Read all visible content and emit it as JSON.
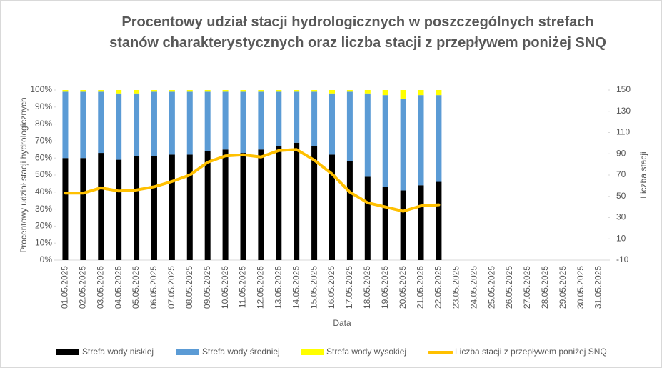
{
  "chart_data": {
    "type": "bar",
    "title": "Procentowy udział stacji hydrologicznych w poszczególnych strefach stanów charakterystycznych oraz liczba stacji z przepływem poniżej SNQ",
    "x_label": "Data",
    "y_label": "Procentowy udział stacji hydrologicznych",
    "y2_label": "Liczba stacji",
    "stacked": true,
    "legend": "bottom",
    "categories": [
      "01.05.2025",
      "02.05.2025",
      "03.05.2025",
      "04.05.2025",
      "05.05.2025",
      "06.05.2025",
      "07.05.2025",
      "08.05.2025",
      "09.05.2025",
      "10.05.2025",
      "11.05.2025",
      "12.05.2025",
      "13.05.2025",
      "14.05.2025",
      "15.05.2025",
      "16.05.2025",
      "17.05.2025",
      "18.05.2025",
      "19.05.2025",
      "20.05.2025",
      "21.05.2025",
      "22.05.2025",
      "23.05.2025",
      "24.05.2025",
      "25.05.2025",
      "26.05.2025",
      "27.05.2025",
      "28.05.2025",
      "29.05.2025",
      "30.05.2025",
      "31.05.2025"
    ],
    "series": [
      {
        "name": "Strefa wody niskiej",
        "type": "bar",
        "color": "#000000",
        "values": [
          60,
          60,
          63,
          59,
          61,
          61,
          62,
          62,
          64,
          65,
          63,
          65,
          67,
          69,
          67,
          62,
          58,
          49,
          43,
          41,
          44,
          46,
          null,
          null,
          null,
          null,
          null,
          null,
          null,
          null,
          null
        ]
      },
      {
        "name": "Strefa wody średniej",
        "type": "bar",
        "color": "#5b9bd5",
        "values": [
          39,
          39,
          36,
          39,
          37,
          38,
          37,
          37,
          35,
          34,
          36,
          34,
          32,
          30,
          32,
          36,
          41,
          49,
          54,
          54,
          53,
          51,
          null,
          null,
          null,
          null,
          null,
          null,
          null,
          null,
          null
        ]
      },
      {
        "name": "Strefa wody wysokiej",
        "type": "bar",
        "color": "#ffff00",
        "values": [
          1,
          1,
          1,
          2,
          2,
          1,
          1,
          1,
          1,
          1,
          1,
          1,
          1,
          1,
          1,
          2,
          1,
          2,
          3,
          5,
          3,
          3,
          null,
          null,
          null,
          null,
          null,
          null,
          null,
          null,
          null
        ]
      },
      {
        "name": "Liczba stacji z przepływem poniżej SNQ",
        "type": "line",
        "axis": "y2",
        "color": "#ffc000",
        "values": [
          53,
          53,
          58,
          55,
          56,
          59,
          64,
          70,
          82,
          88,
          89,
          87,
          93,
          94,
          84,
          71,
          54,
          44,
          40,
          36,
          41,
          42,
          null,
          null,
          null,
          null,
          null,
          null,
          null,
          null,
          null
        ]
      }
    ],
    "ylim": [
      0,
      100
    ],
    "yticks": [
      {
        "value": 0,
        "label": "0%"
      },
      {
        "value": 10,
        "label": "10%"
      },
      {
        "value": 20,
        "label": "20%"
      },
      {
        "value": 30,
        "label": "30%"
      },
      {
        "value": 40,
        "label": "40%"
      },
      {
        "value": 50,
        "label": "50%"
      },
      {
        "value": 60,
        "label": "60%"
      },
      {
        "value": 70,
        "label": "70%"
      },
      {
        "value": 80,
        "label": "80%"
      },
      {
        "value": 90,
        "label": "90%"
      },
      {
        "value": 100,
        "label": "100%"
      }
    ],
    "y2lim": [
      -10,
      150
    ],
    "y2ticks": [
      -10,
      10,
      30,
      50,
      70,
      90,
      110,
      130,
      150
    ]
  }
}
